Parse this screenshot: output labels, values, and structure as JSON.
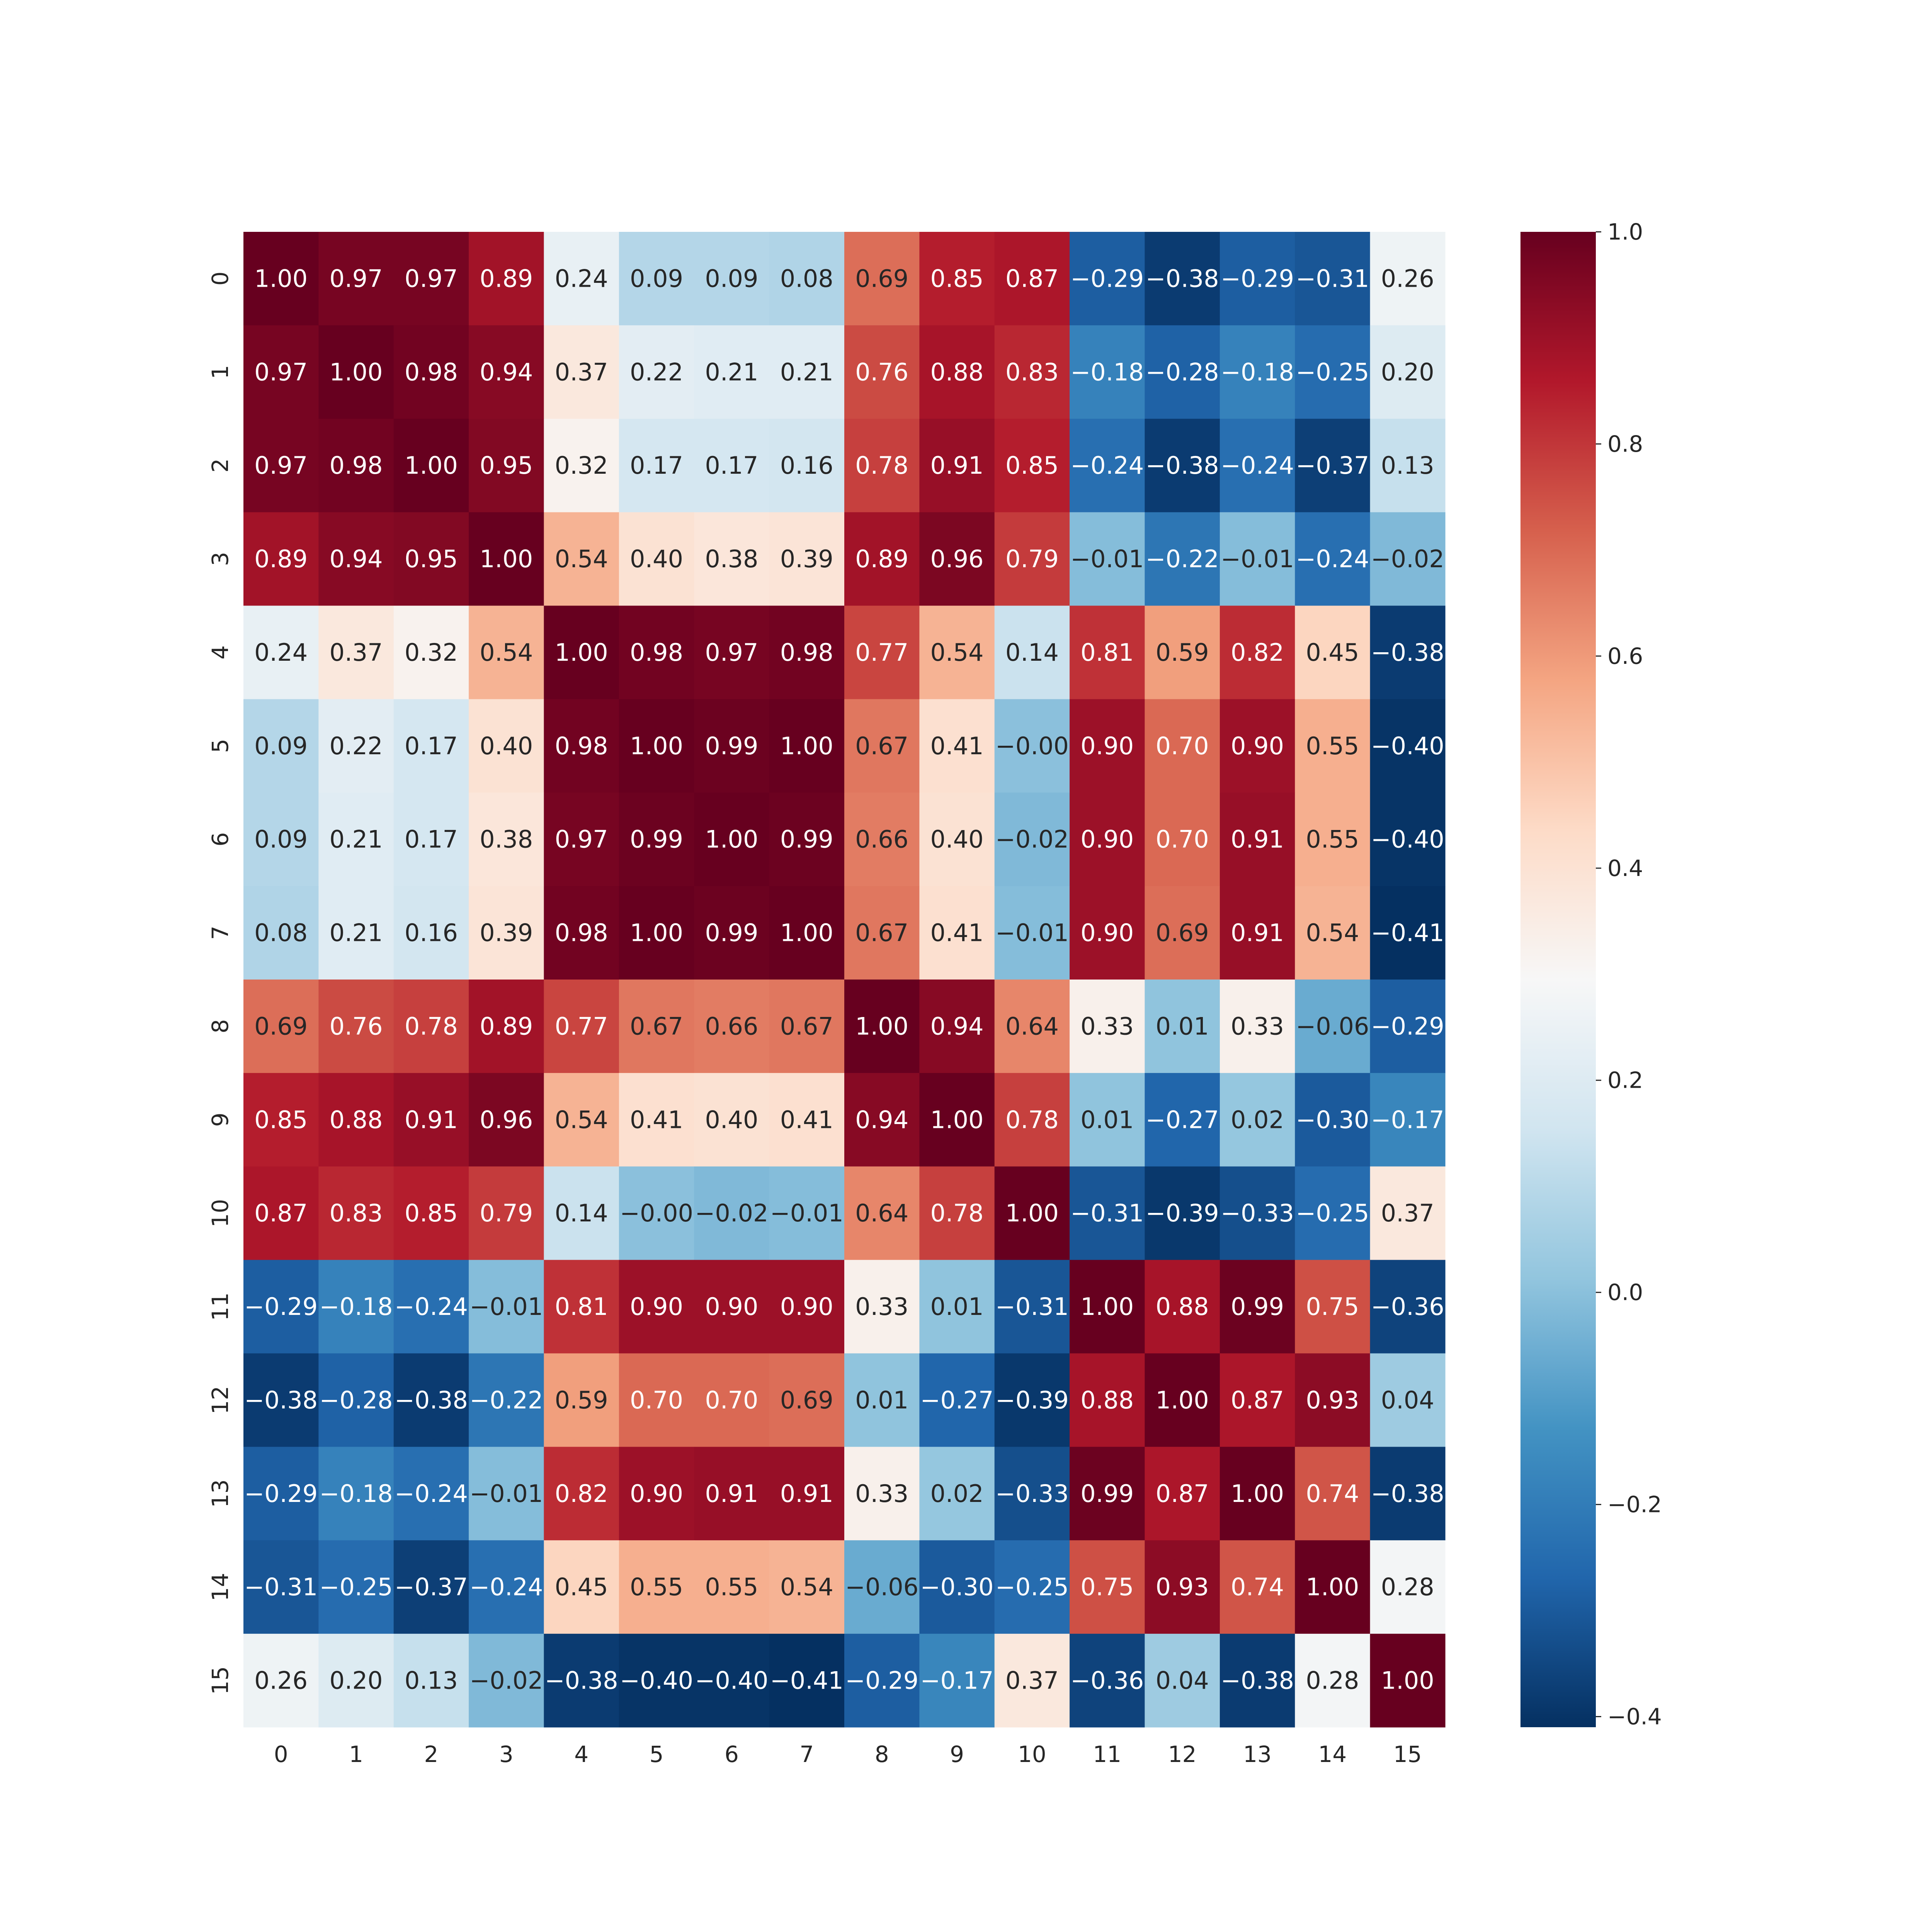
{
  "chart_data": {
    "type": "heatmap",
    "title": "",
    "xlabel": "",
    "ylabel": "",
    "x_labels": [
      "0",
      "1",
      "2",
      "3",
      "4",
      "5",
      "6",
      "7",
      "8",
      "9",
      "10",
      "11",
      "12",
      "13",
      "14",
      "15"
    ],
    "y_labels": [
      "0",
      "1",
      "2",
      "3",
      "4",
      "5",
      "6",
      "7",
      "8",
      "9",
      "10",
      "11",
      "12",
      "13",
      "14",
      "15"
    ],
    "values": [
      [
        1.0,
        0.97,
        0.97,
        0.89,
        0.24,
        0.09,
        0.09,
        0.08,
        0.69,
        0.85,
        0.87,
        -0.29,
        -0.38,
        -0.29,
        -0.31,
        0.26
      ],
      [
        0.97,
        1.0,
        0.98,
        0.94,
        0.37,
        0.22,
        0.21,
        0.21,
        0.76,
        0.88,
        0.83,
        -0.18,
        -0.28,
        -0.18,
        -0.25,
        0.2
      ],
      [
        0.97,
        0.98,
        1.0,
        0.95,
        0.32,
        0.17,
        0.17,
        0.16,
        0.78,
        0.91,
        0.85,
        -0.24,
        -0.38,
        -0.24,
        -0.37,
        0.13
      ],
      [
        0.89,
        0.94,
        0.95,
        1.0,
        0.54,
        0.4,
        0.38,
        0.39,
        0.89,
        0.96,
        0.79,
        -0.01,
        -0.22,
        -0.01,
        -0.24,
        -0.02
      ],
      [
        0.24,
        0.37,
        0.32,
        0.54,
        1.0,
        0.98,
        0.97,
        0.98,
        0.77,
        0.54,
        0.14,
        0.81,
        0.59,
        0.82,
        0.45,
        -0.38
      ],
      [
        0.09,
        0.22,
        0.17,
        0.4,
        0.98,
        1.0,
        0.99,
        1.0,
        0.67,
        0.41,
        -0.0,
        0.9,
        0.7,
        0.9,
        0.55,
        -0.4
      ],
      [
        0.09,
        0.21,
        0.17,
        0.38,
        0.97,
        0.99,
        1.0,
        0.99,
        0.66,
        0.4,
        -0.02,
        0.9,
        0.7,
        0.91,
        0.55,
        -0.4
      ],
      [
        0.08,
        0.21,
        0.16,
        0.39,
        0.98,
        1.0,
        0.99,
        1.0,
        0.67,
        0.41,
        -0.01,
        0.9,
        0.69,
        0.91,
        0.54,
        -0.41
      ],
      [
        0.69,
        0.76,
        0.78,
        0.89,
        0.77,
        0.67,
        0.66,
        0.67,
        1.0,
        0.94,
        0.64,
        0.33,
        0.01,
        0.33,
        -0.06,
        -0.29
      ],
      [
        0.85,
        0.88,
        0.91,
        0.96,
        0.54,
        0.41,
        0.4,
        0.41,
        0.94,
        1.0,
        0.78,
        0.01,
        -0.27,
        0.02,
        -0.3,
        -0.17
      ],
      [
        0.87,
        0.83,
        0.85,
        0.79,
        0.14,
        -0.0,
        -0.02,
        -0.01,
        0.64,
        0.78,
        1.0,
        -0.31,
        -0.39,
        -0.33,
        -0.25,
        0.37
      ],
      [
        -0.29,
        -0.18,
        -0.24,
        -0.01,
        0.81,
        0.9,
        0.9,
        0.9,
        0.33,
        0.01,
        -0.31,
        1.0,
        0.88,
        0.99,
        0.75,
        -0.36
      ],
      [
        -0.38,
        -0.28,
        -0.38,
        -0.22,
        0.59,
        0.7,
        0.7,
        0.69,
        0.01,
        -0.27,
        -0.39,
        0.88,
        1.0,
        0.87,
        0.93,
        0.04
      ],
      [
        -0.29,
        -0.18,
        -0.24,
        -0.01,
        0.82,
        0.9,
        0.91,
        0.91,
        0.33,
        0.02,
        -0.33,
        0.99,
        0.87,
        1.0,
        0.74,
        -0.38
      ],
      [
        -0.31,
        -0.25,
        -0.37,
        -0.24,
        0.45,
        0.55,
        0.55,
        0.54,
        -0.06,
        -0.3,
        -0.25,
        0.75,
        0.93,
        0.74,
        1.0,
        0.28
      ],
      [
        0.26,
        0.2,
        0.13,
        -0.02,
        -0.38,
        -0.4,
        -0.4,
        -0.41,
        -0.29,
        -0.17,
        0.37,
        -0.36,
        0.04,
        -0.38,
        0.28,
        1.0
      ]
    ],
    "value_format_decimals": 2,
    "colormap": "RdBu_r",
    "vmin": -0.41,
    "vmax": 1.0,
    "colorbar": {
      "ticks": [
        1.0,
        0.8,
        0.6,
        0.4,
        0.2,
        0.0,
        -0.2,
        -0.4
      ],
      "tick_labels": [
        "1.0",
        "0.8",
        "0.6",
        "0.4",
        "0.2",
        "0.0",
        "−0.2",
        "−0.4"
      ]
    },
    "grid": false,
    "legend": "colorbar-right"
  }
}
